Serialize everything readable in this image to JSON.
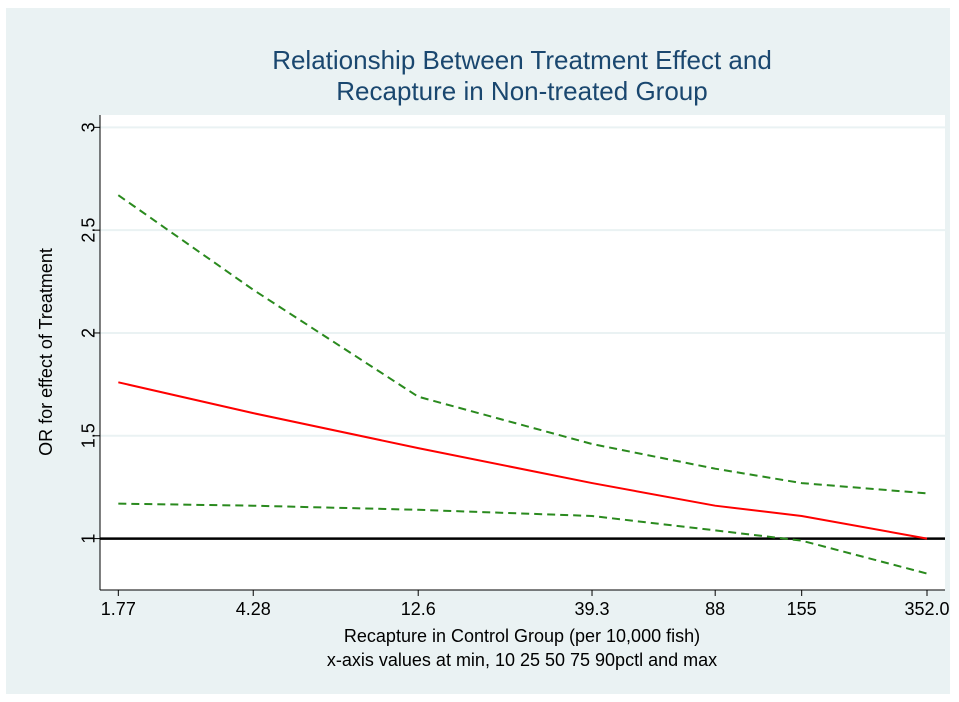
{
  "chart_data": {
    "type": "line",
    "title": [
      "Relationship Between Treatment Effect and",
      "Recapture in Non-treated Group"
    ],
    "x_label": "Recapture in Control Group (per 10,000 fish)",
    "x_note": "x-axis values at min, 10 25 50 75 90pctl and max",
    "y_label": "OR for effect of Treatment",
    "x": [
      1.77,
      4.28,
      12.6,
      39.3,
      88,
      155,
      352.0
    ],
    "series": [
      {
        "color": "#ff0000",
        "dashed": false,
        "values": [
          1.76,
          1.61,
          1.44,
          1.27,
          1.16,
          1.11,
          1.0
        ]
      },
      {
        "color": "#2a8a1e",
        "dashed": true,
        "values": [
          2.67,
          2.21,
          1.69,
          1.46,
          1.34,
          1.27,
          1.22
        ]
      },
      {
        "color": "#2a8a1e",
        "dashed": true,
        "values": [
          1.17,
          1.16,
          1.14,
          1.11,
          1.04,
          0.99,
          0.83
        ]
      }
    ],
    "reference_line": 1,
    "xscale": "log",
    "xlim": [
      1.57,
      396
    ],
    "xticks": [
      1.77,
      4.28,
      12.6,
      39.3,
      88,
      155,
      {
        "value": 352,
        "label": "352.0"
      }
    ],
    "ylim": [
      0.75,
      3.06
    ],
    "yticks": [
      1,
      1.5,
      2,
      2.5,
      3
    ],
    "grid": true
  }
}
